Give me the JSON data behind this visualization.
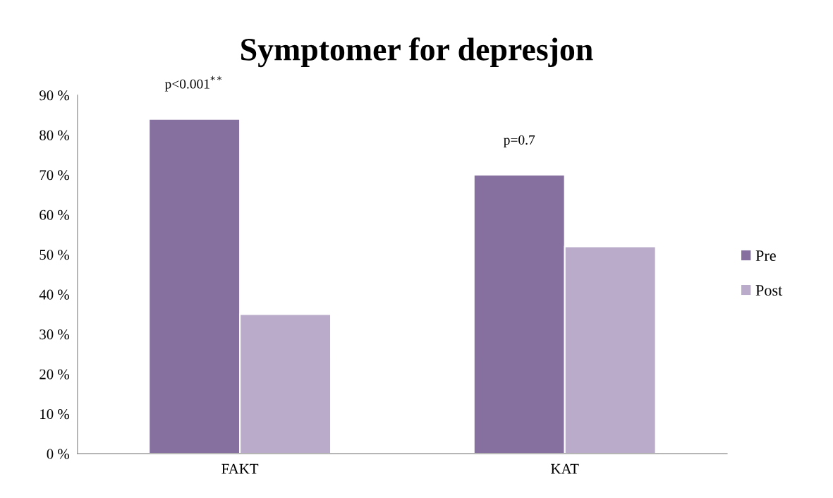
{
  "chart_data": {
    "type": "bar",
    "title": "Symptomer for depresjon",
    "categories": [
      "FAKT",
      "KAT"
    ],
    "series": [
      {
        "name": "Pre",
        "color": "#8570a0",
        "values": [
          84,
          70
        ]
      },
      {
        "name": "Post",
        "color": "#b9abc9",
        "values": [
          35,
          52
        ]
      }
    ],
    "ylim": [
      0,
      90
    ],
    "yticks": [
      {
        "value": 0,
        "label": "0 %"
      },
      {
        "value": 10,
        "label": "10 %"
      },
      {
        "value": 20,
        "label": "20 %"
      },
      {
        "value": 30,
        "label": "30 %"
      },
      {
        "value": 40,
        "label": "40 %"
      },
      {
        "value": 50,
        "label": "50 %"
      },
      {
        "value": 60,
        "label": "60 %"
      },
      {
        "value": 70,
        "label": "70 %"
      },
      {
        "value": 80,
        "label": "80 %"
      },
      {
        "value": 90,
        "label": "90 %"
      }
    ],
    "annotations": [
      "p<0.001$^{**}$",
      "p=0.7"
    ],
    "legend": "right",
    "grid": false
  }
}
